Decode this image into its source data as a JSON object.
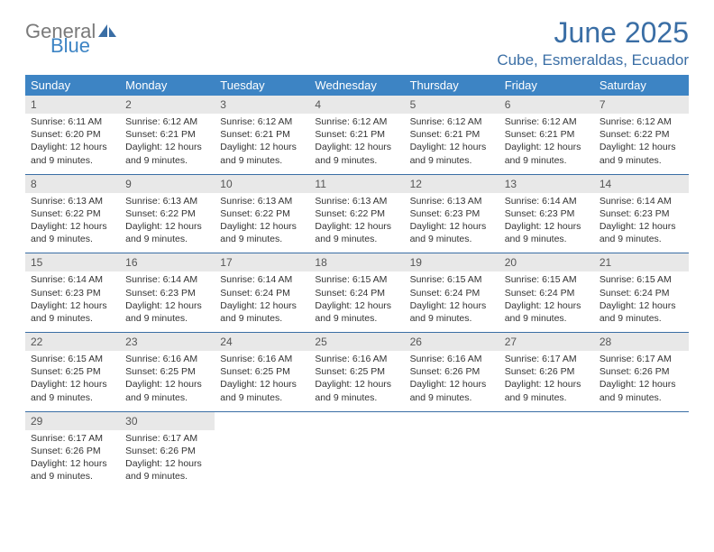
{
  "logo": {
    "word1": "General",
    "word2": "Blue"
  },
  "title": "June 2025",
  "location": "Cube, Esmeraldas, Ecuador",
  "colors": {
    "header_bg": "#3d84c4",
    "header_text": "#ffffff",
    "title_color": "#3a6ea5",
    "daynum_bg": "#e8e8e8",
    "rule": "#3a6ea5"
  },
  "dow": [
    "Sunday",
    "Monday",
    "Tuesday",
    "Wednesday",
    "Thursday",
    "Friday",
    "Saturday"
  ],
  "weeks": [
    [
      {
        "n": "1",
        "sr": "6:11 AM",
        "ss": "6:20 PM",
        "dl": "12 hours and 9 minutes."
      },
      {
        "n": "2",
        "sr": "6:12 AM",
        "ss": "6:21 PM",
        "dl": "12 hours and 9 minutes."
      },
      {
        "n": "3",
        "sr": "6:12 AM",
        "ss": "6:21 PM",
        "dl": "12 hours and 9 minutes."
      },
      {
        "n": "4",
        "sr": "6:12 AM",
        "ss": "6:21 PM",
        "dl": "12 hours and 9 minutes."
      },
      {
        "n": "5",
        "sr": "6:12 AM",
        "ss": "6:21 PM",
        "dl": "12 hours and 9 minutes."
      },
      {
        "n": "6",
        "sr": "6:12 AM",
        "ss": "6:21 PM",
        "dl": "12 hours and 9 minutes."
      },
      {
        "n": "7",
        "sr": "6:12 AM",
        "ss": "6:22 PM",
        "dl": "12 hours and 9 minutes."
      }
    ],
    [
      {
        "n": "8",
        "sr": "6:13 AM",
        "ss": "6:22 PM",
        "dl": "12 hours and 9 minutes."
      },
      {
        "n": "9",
        "sr": "6:13 AM",
        "ss": "6:22 PM",
        "dl": "12 hours and 9 minutes."
      },
      {
        "n": "10",
        "sr": "6:13 AM",
        "ss": "6:22 PM",
        "dl": "12 hours and 9 minutes."
      },
      {
        "n": "11",
        "sr": "6:13 AM",
        "ss": "6:22 PM",
        "dl": "12 hours and 9 minutes."
      },
      {
        "n": "12",
        "sr": "6:13 AM",
        "ss": "6:23 PM",
        "dl": "12 hours and 9 minutes."
      },
      {
        "n": "13",
        "sr": "6:14 AM",
        "ss": "6:23 PM",
        "dl": "12 hours and 9 minutes."
      },
      {
        "n": "14",
        "sr": "6:14 AM",
        "ss": "6:23 PM",
        "dl": "12 hours and 9 minutes."
      }
    ],
    [
      {
        "n": "15",
        "sr": "6:14 AM",
        "ss": "6:23 PM",
        "dl": "12 hours and 9 minutes."
      },
      {
        "n": "16",
        "sr": "6:14 AM",
        "ss": "6:23 PM",
        "dl": "12 hours and 9 minutes."
      },
      {
        "n": "17",
        "sr": "6:14 AM",
        "ss": "6:24 PM",
        "dl": "12 hours and 9 minutes."
      },
      {
        "n": "18",
        "sr": "6:15 AM",
        "ss": "6:24 PM",
        "dl": "12 hours and 9 minutes."
      },
      {
        "n": "19",
        "sr": "6:15 AM",
        "ss": "6:24 PM",
        "dl": "12 hours and 9 minutes."
      },
      {
        "n": "20",
        "sr": "6:15 AM",
        "ss": "6:24 PM",
        "dl": "12 hours and 9 minutes."
      },
      {
        "n": "21",
        "sr": "6:15 AM",
        "ss": "6:24 PM",
        "dl": "12 hours and 9 minutes."
      }
    ],
    [
      {
        "n": "22",
        "sr": "6:15 AM",
        "ss": "6:25 PM",
        "dl": "12 hours and 9 minutes."
      },
      {
        "n": "23",
        "sr": "6:16 AM",
        "ss": "6:25 PM",
        "dl": "12 hours and 9 minutes."
      },
      {
        "n": "24",
        "sr": "6:16 AM",
        "ss": "6:25 PM",
        "dl": "12 hours and 9 minutes."
      },
      {
        "n": "25",
        "sr": "6:16 AM",
        "ss": "6:25 PM",
        "dl": "12 hours and 9 minutes."
      },
      {
        "n": "26",
        "sr": "6:16 AM",
        "ss": "6:26 PM",
        "dl": "12 hours and 9 minutes."
      },
      {
        "n": "27",
        "sr": "6:17 AM",
        "ss": "6:26 PM",
        "dl": "12 hours and 9 minutes."
      },
      {
        "n": "28",
        "sr": "6:17 AM",
        "ss": "6:26 PM",
        "dl": "12 hours and 9 minutes."
      }
    ],
    [
      {
        "n": "29",
        "sr": "6:17 AM",
        "ss": "6:26 PM",
        "dl": "12 hours and 9 minutes."
      },
      {
        "n": "30",
        "sr": "6:17 AM",
        "ss": "6:26 PM",
        "dl": "12 hours and 9 minutes."
      },
      null,
      null,
      null,
      null,
      null
    ]
  ],
  "labels": {
    "sunrise": "Sunrise:",
    "sunset": "Sunset:",
    "daylight": "Daylight:"
  }
}
